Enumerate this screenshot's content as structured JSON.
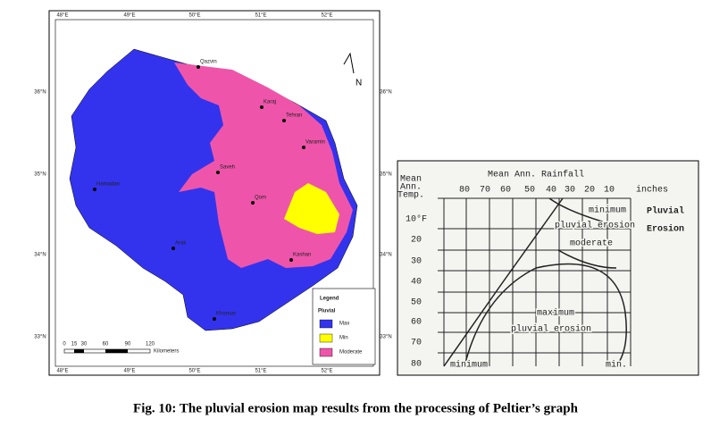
{
  "map": {
    "lon_labels": [
      "48°E",
      "49°E",
      "50°E",
      "51°E",
      "52°E"
    ],
    "lat_labels": [
      "36°N",
      "35°N",
      "34°N",
      "33°N"
    ],
    "cities": [
      "Qazvin",
      "Karaj",
      "Tehran",
      "Varamin",
      "Saveh",
      "Hamadan",
      "Qom",
      "Arak",
      "Kashan",
      "Khonsar"
    ],
    "north": "N",
    "scale": {
      "ticks": [
        "0",
        "15",
        "30",
        "60",
        "90",
        "120"
      ],
      "unit": "Kilometers"
    },
    "legend": {
      "title": "Legend",
      "subtitle": "Pluvial",
      "items": [
        "Max",
        "Min",
        "Moderate"
      ]
    }
  },
  "graph": {
    "title": "Mean Ann. Rainfall",
    "rainfall": [
      "80",
      "70",
      "60",
      "50",
      "40",
      "30",
      "20",
      "10"
    ],
    "rainfall_unit": "inches",
    "temp_label": [
      "Mean",
      "Ann.",
      "Temp."
    ],
    "temps": [
      "10°F",
      "20",
      "30",
      "40",
      "50",
      "60",
      "70",
      "80"
    ],
    "zones": [
      "minimum",
      "pluvial erosion",
      "moderate",
      "maximum",
      "pluvial erosion",
      "minimum",
      "min."
    ],
    "side_title": [
      "Pluvial",
      "Erosion"
    ]
  },
  "caption": "Fig. 10: The pluvial erosion map results from the processing of Peltier’s graph"
}
